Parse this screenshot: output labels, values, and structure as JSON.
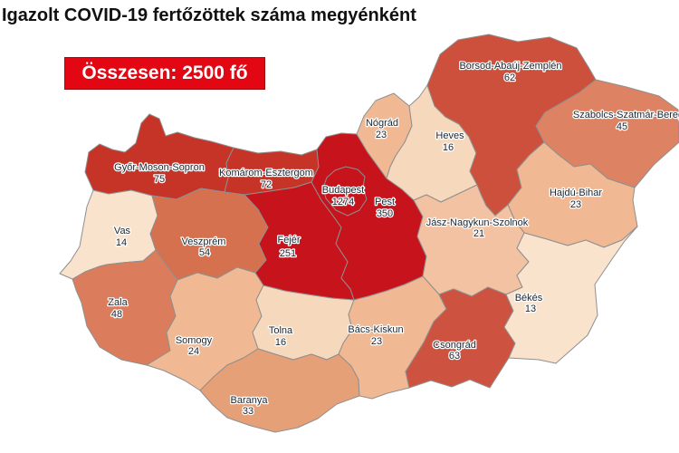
{
  "title": "Igazolt COVID-19 fertőzöttek száma megyénként",
  "badge": {
    "text": "Összesen: 2500 fő",
    "bg": "#e30613",
    "fg": "#ffffff",
    "border": "#9b0d0d"
  },
  "map": {
    "background": "#ffffff",
    "county_border_color": "#8f8f8f",
    "label_color": "#1a2630",
    "counties": [
      {
        "id": "gyms",
        "name": "Győr-Moson-Sopron",
        "value": "75",
        "color": "#c63428"
      },
      {
        "id": "komarom",
        "name": "Komárom-Esztergom",
        "value": "72",
        "color": "#c63428"
      },
      {
        "id": "vas",
        "name": "Vas",
        "value": "14",
        "color": "#f9e3cd"
      },
      {
        "id": "veszprem",
        "name": "Veszprém",
        "value": "54",
        "color": "#d5714f"
      },
      {
        "id": "zala",
        "name": "Zala",
        "value": "48",
        "color": "#db7d5c"
      },
      {
        "id": "somogy",
        "name": "Somogy",
        "value": "24",
        "color": "#f0b994"
      },
      {
        "id": "tolna",
        "name": "Tolna",
        "value": "16",
        "color": "#f6d9bd"
      },
      {
        "id": "baranya",
        "name": "Baranya",
        "value": "33",
        "color": "#e6a078"
      },
      {
        "id": "fejer",
        "name": "Fejér",
        "value": "251",
        "color": "#c6131c"
      },
      {
        "id": "pest",
        "name": "Pest",
        "value": "350",
        "color": "#c6131c"
      },
      {
        "id": "nograd",
        "name": "Nógrád",
        "value": "23",
        "color": "#f0b994"
      },
      {
        "id": "heves",
        "name": "Heves",
        "value": "16",
        "color": "#f6d9bd"
      },
      {
        "id": "borsod",
        "name": "Borsod-Abaúj-Zemplén",
        "value": "62",
        "color": "#cd503c"
      },
      {
        "id": "szabolcs",
        "name": "Szabolcs-Szatmár-Bereg",
        "value": "45",
        "color": "#dd8263"
      },
      {
        "id": "hajdu",
        "name": "Hajdú-Bihar",
        "value": "23",
        "color": "#f0b994"
      },
      {
        "id": "jnsz",
        "name": "Jász-Nagykun-Szolnok",
        "value": "21",
        "color": "#f2c2a2"
      },
      {
        "id": "bacs",
        "name": "Bács-Kiskun",
        "value": "23",
        "color": "#f0b994"
      },
      {
        "id": "csongrad",
        "name": "Csongrád",
        "value": "63",
        "color": "#cd5340"
      },
      {
        "id": "bekes",
        "name": "Békés",
        "value": "13",
        "color": "#f9e3cd"
      },
      {
        "id": "budapest",
        "name": "Budapest",
        "value": "1274",
        "color": "#c6131c"
      }
    ]
  }
}
